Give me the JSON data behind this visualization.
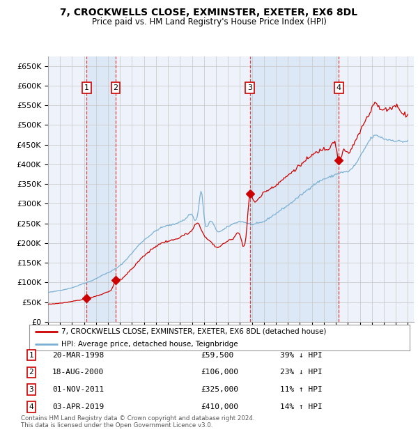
{
  "title1": "7, CROCKWELLS CLOSE, EXMINSTER, EXETER, EX6 8DL",
  "title2": "Price paid vs. HM Land Registry's House Price Index (HPI)",
  "yticks": [
    0,
    50000,
    100000,
    150000,
    200000,
    250000,
    300000,
    350000,
    400000,
    450000,
    500000,
    550000,
    600000,
    650000
  ],
  "ylim": [
    0,
    675000
  ],
  "xlim_start": 1995.0,
  "xlim_end": 2025.5,
  "xtick_years": [
    1995,
    1996,
    1997,
    1998,
    1999,
    2000,
    2001,
    2002,
    2003,
    2004,
    2005,
    2006,
    2007,
    2008,
    2009,
    2010,
    2011,
    2012,
    2013,
    2014,
    2015,
    2016,
    2017,
    2018,
    2019,
    2020,
    2021,
    2022,
    2023,
    2024,
    2025
  ],
  "sales": [
    {
      "label": "1",
      "date_dec": 1998.22,
      "price": 59500,
      "date_str": "20-MAR-1998",
      "hpi_txt": "39% ↓ HPI"
    },
    {
      "label": "2",
      "date_dec": 2000.63,
      "price": 106000,
      "date_str": "18-AUG-2000",
      "hpi_txt": "23% ↓ HPI"
    },
    {
      "label": "3",
      "date_dec": 2011.83,
      "price": 325000,
      "date_str": "01-NOV-2011",
      "hpi_txt": "11% ↑ HPI"
    },
    {
      "label": "4",
      "date_dec": 2019.25,
      "price": 410000,
      "date_str": "03-APR-2019",
      "hpi_txt": "14% ↑ HPI"
    }
  ],
  "shade_color": "#dce8f5",
  "sale_line_color": "#cc0000",
  "hpi_line_color": "#7ab0d4",
  "grid_color": "#cccccc",
  "dashed_line_color": "#dd3333",
  "background_color": "#ffffff",
  "plot_bg_color": "#eef3fb",
  "legend_text1": "7, CROCKWELLS CLOSE, EXMINSTER, EXETER, EX6 8DL (detached house)",
  "legend_text2": "HPI: Average price, detached house, Teignbridge",
  "footnote": "Contains HM Land Registry data © Crown copyright and database right 2024.\nThis data is licensed under the Open Government Licence v3.0.",
  "table_rows": [
    [
      "1",
      "20-MAR-1998",
      "£59,500",
      "39% ↓ HPI"
    ],
    [
      "2",
      "18-AUG-2000",
      "£106,000",
      "23% ↓ HPI"
    ],
    [
      "3",
      "01-NOV-2011",
      "£325,000",
      "11% ↑ HPI"
    ],
    [
      "4",
      "03-APR-2019",
      "£410,000",
      "14% ↑ HPI"
    ]
  ]
}
